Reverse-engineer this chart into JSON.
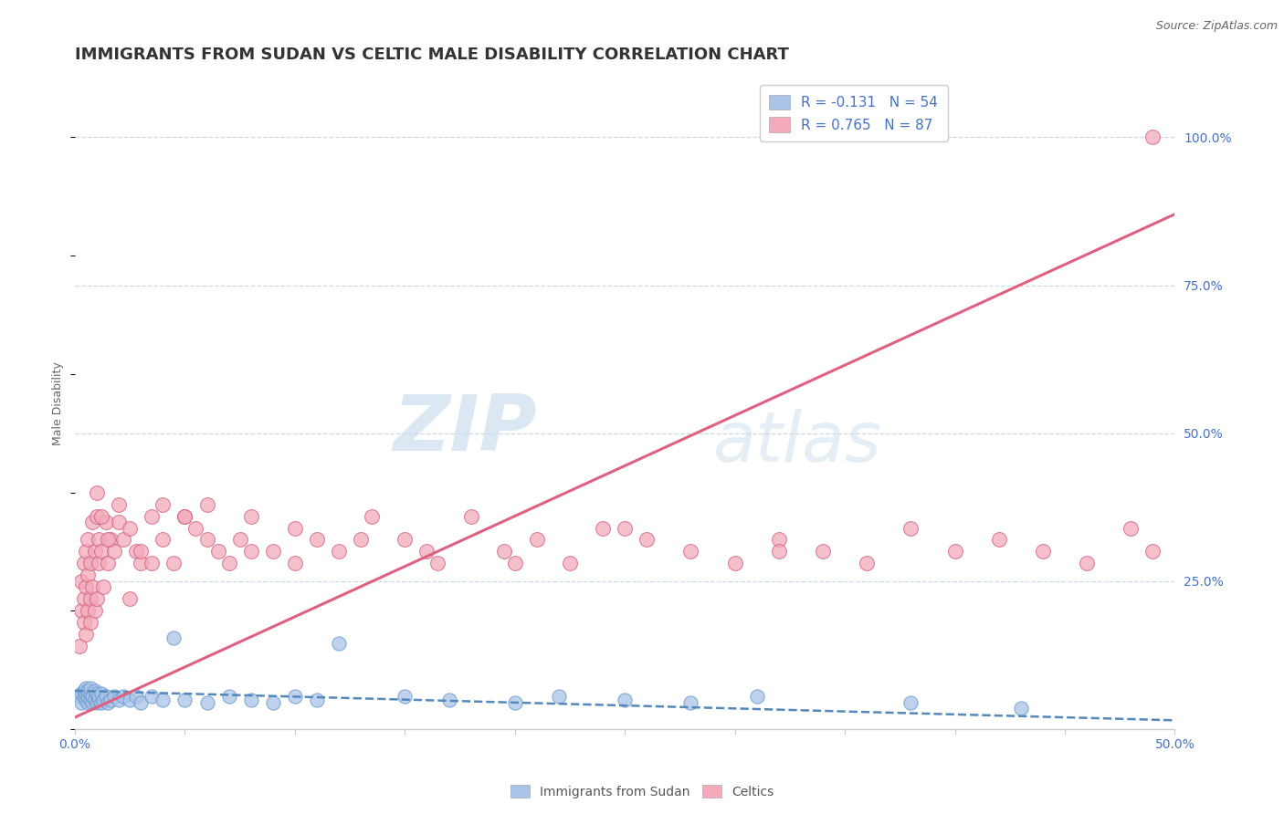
{
  "title": "IMMIGRANTS FROM SUDAN VS CELTIC MALE DISABILITY CORRELATION CHART",
  "source": "Source: ZipAtlas.com",
  "ylabel": "Male Disability",
  "xlim": [
    0.0,
    0.5
  ],
  "ylim": [
    0.0,
    1.1
  ],
  "xticks": [
    0.0,
    0.05,
    0.1,
    0.15,
    0.2,
    0.25,
    0.3,
    0.35,
    0.4,
    0.45,
    0.5
  ],
  "xticklabels": [
    "0.0%",
    "",
    "",
    "",
    "",
    "",
    "",
    "",
    "",
    "",
    "50.0%"
  ],
  "yticks": [
    0.0,
    0.25,
    0.5,
    0.75,
    1.0
  ],
  "yticklabels": [
    "",
    "25.0%",
    "50.0%",
    "75.0%",
    "100.0%"
  ],
  "watermark_zip": "ZIP",
  "watermark_atlas": "atlas",
  "legend_entries": [
    {
      "label": "R = -0.131   N = 54",
      "color": "#aac4e8"
    },
    {
      "label": "R = 0.765   N = 87",
      "color": "#f4aabb"
    }
  ],
  "bottom_legend": [
    {
      "label": "Immigrants from Sudan",
      "color": "#aac4e8"
    },
    {
      "label": "Celtics",
      "color": "#f4aabb"
    }
  ],
  "series_blue": {
    "name": "Immigrants from Sudan",
    "color": "#aac4e8",
    "edge_color": "#6699cc",
    "line_color": "#5588bb",
    "line_style": "--",
    "trend_x": [
      0.0,
      0.5
    ],
    "trend_y": [
      0.065,
      0.015
    ],
    "x": [
      0.002,
      0.003,
      0.003,
      0.004,
      0.004,
      0.005,
      0.005,
      0.005,
      0.006,
      0.006,
      0.006,
      0.007,
      0.007,
      0.007,
      0.008,
      0.008,
      0.009,
      0.009,
      0.01,
      0.01,
      0.011,
      0.011,
      0.012,
      0.012,
      0.013,
      0.014,
      0.015,
      0.016,
      0.018,
      0.02,
      0.022,
      0.025,
      0.028,
      0.03,
      0.035,
      0.04,
      0.045,
      0.05,
      0.06,
      0.07,
      0.08,
      0.09,
      0.1,
      0.11,
      0.12,
      0.15,
      0.17,
      0.2,
      0.22,
      0.25,
      0.28,
      0.31,
      0.38,
      0.43
    ],
    "y": [
      0.055,
      0.06,
      0.045,
      0.055,
      0.065,
      0.05,
      0.06,
      0.07,
      0.045,
      0.055,
      0.065,
      0.05,
      0.06,
      0.07,
      0.045,
      0.055,
      0.05,
      0.065,
      0.045,
      0.06,
      0.05,
      0.055,
      0.045,
      0.06,
      0.05,
      0.055,
      0.045,
      0.05,
      0.055,
      0.05,
      0.055,
      0.05,
      0.055,
      0.045,
      0.055,
      0.05,
      0.155,
      0.05,
      0.045,
      0.055,
      0.05,
      0.045,
      0.055,
      0.05,
      0.145,
      0.055,
      0.05,
      0.045,
      0.055,
      0.05,
      0.045,
      0.055,
      0.045,
      0.035
    ]
  },
  "series_pink": {
    "name": "Celtics",
    "color": "#f4aabb",
    "edge_color": "#d06080",
    "line_color": "#e06080",
    "line_style": "-",
    "trend_x": [
      0.0,
      0.5
    ],
    "trend_y": [
      0.02,
      0.87
    ],
    "x": [
      0.002,
      0.003,
      0.003,
      0.004,
      0.004,
      0.004,
      0.005,
      0.005,
      0.005,
      0.006,
      0.006,
      0.006,
      0.007,
      0.007,
      0.007,
      0.008,
      0.008,
      0.009,
      0.009,
      0.01,
      0.01,
      0.011,
      0.011,
      0.012,
      0.013,
      0.014,
      0.015,
      0.016,
      0.018,
      0.02,
      0.022,
      0.025,
      0.028,
      0.03,
      0.035,
      0.04,
      0.045,
      0.05,
      0.055,
      0.06,
      0.065,
      0.07,
      0.075,
      0.08,
      0.09,
      0.1,
      0.11,
      0.12,
      0.135,
      0.15,
      0.165,
      0.18,
      0.195,
      0.21,
      0.225,
      0.24,
      0.26,
      0.28,
      0.3,
      0.32,
      0.34,
      0.36,
      0.38,
      0.4,
      0.42,
      0.44,
      0.46,
      0.48,
      0.49,
      0.01,
      0.012,
      0.015,
      0.02,
      0.025,
      0.03,
      0.035,
      0.04,
      0.05,
      0.06,
      0.08,
      0.1,
      0.13,
      0.16,
      0.2,
      0.25,
      0.32,
      0.49
    ],
    "y": [
      0.14,
      0.2,
      0.25,
      0.18,
      0.22,
      0.28,
      0.16,
      0.24,
      0.3,
      0.2,
      0.26,
      0.32,
      0.18,
      0.28,
      0.22,
      0.35,
      0.24,
      0.3,
      0.2,
      0.36,
      0.22,
      0.28,
      0.32,
      0.3,
      0.24,
      0.35,
      0.28,
      0.32,
      0.3,
      0.35,
      0.32,
      0.22,
      0.3,
      0.28,
      0.36,
      0.32,
      0.28,
      0.36,
      0.34,
      0.38,
      0.3,
      0.28,
      0.32,
      0.36,
      0.3,
      0.34,
      0.32,
      0.3,
      0.36,
      0.32,
      0.28,
      0.36,
      0.3,
      0.32,
      0.28,
      0.34,
      0.32,
      0.3,
      0.28,
      0.32,
      0.3,
      0.28,
      0.34,
      0.3,
      0.32,
      0.3,
      0.28,
      0.34,
      0.3,
      0.4,
      0.36,
      0.32,
      0.38,
      0.34,
      0.3,
      0.28,
      0.38,
      0.36,
      0.32,
      0.3,
      0.28,
      0.32,
      0.3,
      0.28,
      0.34,
      0.3,
      1.0
    ]
  },
  "background_color": "#ffffff",
  "grid_color": "#c8d8e8",
  "tick_color": "#4472c4",
  "title_color": "#333333",
  "title_fontsize": 13,
  "axis_label_fontsize": 9,
  "tick_fontsize": 10
}
